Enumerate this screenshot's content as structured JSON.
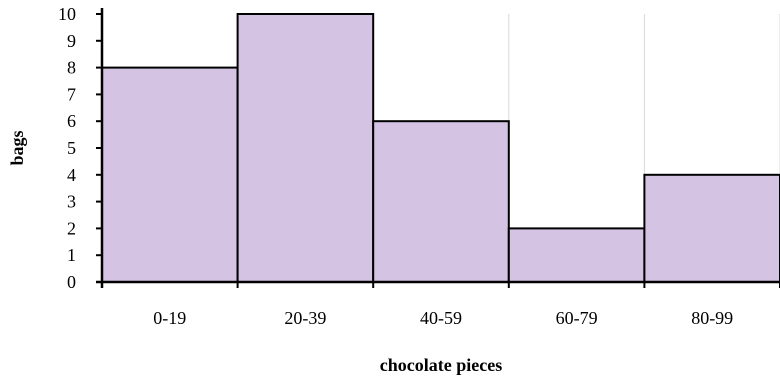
{
  "chart_data": {
    "type": "bar",
    "title": "",
    "xlabel": "chocolate pieces",
    "ylabel": "bags",
    "categories": [
      "0-19",
      "20-39",
      "40-59",
      "60-79",
      "80-99"
    ],
    "values": [
      8,
      10,
      6,
      2,
      4
    ],
    "ylim": [
      0,
      10
    ],
    "yticks": [
      "0",
      "1",
      "2",
      "3",
      "4",
      "5",
      "6",
      "7",
      "8",
      "9",
      "10"
    ],
    "grid": true,
    "legend": "none",
    "colors": {
      "bar_fill": "#d4c3e3",
      "bar_stroke": "#000000",
      "grid": "#d9d9d9",
      "axis": "#000000"
    }
  }
}
